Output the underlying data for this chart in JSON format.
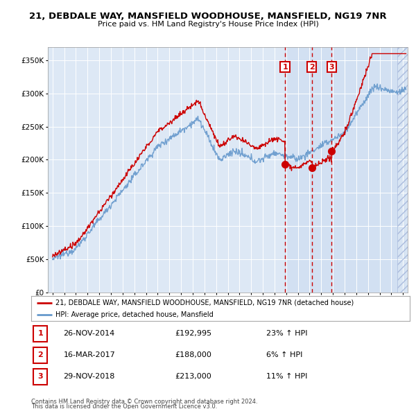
{
  "title1": "21, DEBDALE WAY, MANSFIELD WOODHOUSE, MANSFIELD, NG19 7NR",
  "title2": "Price paid vs. HM Land Registry's House Price Index (HPI)",
  "ylabel_ticks": [
    "£0",
    "£50K",
    "£100K",
    "£150K",
    "£200K",
    "£250K",
    "£300K",
    "£350K"
  ],
  "ytick_vals": [
    0,
    50000,
    100000,
    150000,
    200000,
    250000,
    300000,
    350000
  ],
  "ylim": [
    0,
    370000
  ],
  "xlim_start": 1994.6,
  "xlim_end": 2025.4,
  "legend_line1": "21, DEBDALE WAY, MANSFIELD WOODHOUSE, MANSFIELD, NG19 7NR (detached house)",
  "legend_line2": "HPI: Average price, detached house, Mansfield",
  "sale_color": "#cc0000",
  "hpi_color": "#6699cc",
  "hpi_fill_color": "#ddeeff",
  "sale_points": [
    {
      "date": 2014.9,
      "price": 192995,
      "label": "1"
    },
    {
      "date": 2017.2,
      "price": 188000,
      "label": "2"
    },
    {
      "date": 2018.9,
      "price": 213000,
      "label": "3"
    }
  ],
  "sale_vline_dates": [
    2014.9,
    2017.2,
    2018.9
  ],
  "hatch_start": 2024.5,
  "table_rows": [
    [
      "1",
      "26-NOV-2014",
      "£192,995",
      "23% ↑ HPI"
    ],
    [
      "2",
      "16-MAR-2017",
      "£188,000",
      "6% ↑ HPI"
    ],
    [
      "3",
      "29-NOV-2018",
      "£213,000",
      "11% ↑ HPI"
    ]
  ],
  "footnote1": "Contains HM Land Registry data © Crown copyright and database right 2024.",
  "footnote2": "This data is licensed under the Open Government Licence v3.0."
}
